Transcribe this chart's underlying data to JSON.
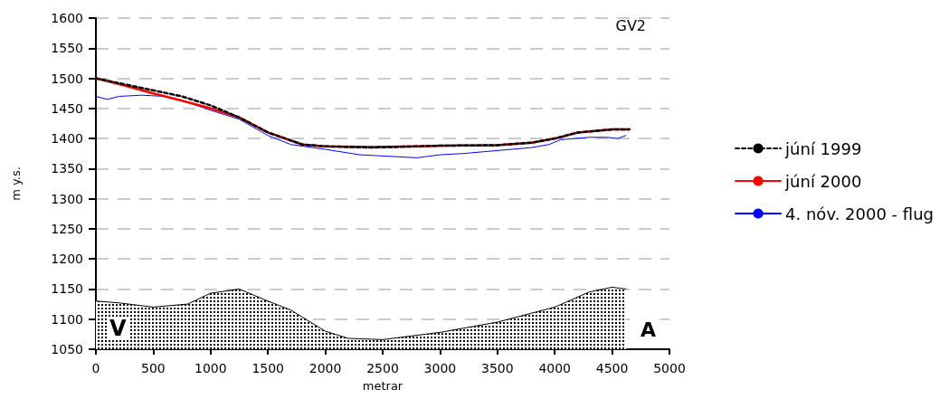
{
  "chart_data": {
    "type": "line",
    "xlabel": "metrar",
    "ylabel": "m y.s.",
    "annotations": [
      "GV2",
      "V",
      "A"
    ],
    "xlim": [
      0,
      5000
    ],
    "xticks": [
      0,
      500,
      1000,
      1500,
      2000,
      2500,
      3000,
      3500,
      4000,
      4500,
      5000
    ],
    "ylim": [
      1050,
      1600
    ],
    "yticks": [
      1050,
      1100,
      1150,
      1200,
      1250,
      1300,
      1350,
      1400,
      1450,
      1500,
      1550,
      1600
    ],
    "grid": "y",
    "legend": "right",
    "marker": "none",
    "series": [
      {
        "name": "júní 1999",
        "color": "#000000",
        "line_style": "dashed",
        "x": [
          0,
          250,
          500,
          750,
          1000,
          1250,
          1500,
          1800,
          2000,
          2400,
          2800,
          3000,
          3500,
          3800,
          4000,
          4200,
          4500,
          4650
        ],
        "values": [
          1500,
          1490,
          1480,
          1470,
          1455,
          1435,
          1410,
          1390,
          1387,
          1385,
          1387,
          1388,
          1389,
          1393,
          1400,
          1410,
          1415,
          1415
        ]
      },
      {
        "name": "júní 2000",
        "color": "#ff0000",
        "line_style": "solid",
        "x": [
          0,
          250,
          500,
          750,
          1000,
          1250,
          1500,
          1800,
          2000,
          2400,
          2800,
          3000,
          3500,
          3800,
          4000,
          4200,
          4500,
          4650
        ],
        "values": [
          1500,
          1488,
          1475,
          1463,
          1450,
          1435,
          1410,
          1390,
          1387,
          1386,
          1387,
          1388,
          1389,
          1393,
          1400,
          1410,
          1415,
          1415
        ]
      },
      {
        "name": "4. nóv. 2000 - flug",
        "color": "#0000ff",
        "line_style": "solid",
        "x": [
          0,
          100,
          200,
          400,
          600,
          800,
          1000,
          1250,
          1500,
          1700,
          2000,
          2300,
          2600,
          2800,
          3000,
          3200,
          3500,
          3800,
          3950,
          4050,
          4300,
          4450,
          4550,
          4620
        ],
        "values": [
          1470,
          1465,
          1470,
          1472,
          1470,
          1460,
          1447,
          1432,
          1405,
          1390,
          1382,
          1373,
          1370,
          1368,
          1373,
          1375,
          1380,
          1385,
          1390,
          1398,
          1402,
          1402,
          1400,
          1405
        ]
      },
      {
        "type": "area",
        "color": "#000000",
        "x": [
          0,
          200,
          500,
          800,
          1000,
          1250,
          1500,
          1700,
          2000,
          2200,
          2500,
          3000,
          3500,
          4000,
          4300,
          4500,
          4620
        ],
        "values": [
          1130,
          1127,
          1120,
          1125,
          1143,
          1150,
          1130,
          1115,
          1080,
          1068,
          1066,
          1078,
          1095,
          1120,
          1145,
          1153,
          1150
        ]
      }
    ]
  }
}
